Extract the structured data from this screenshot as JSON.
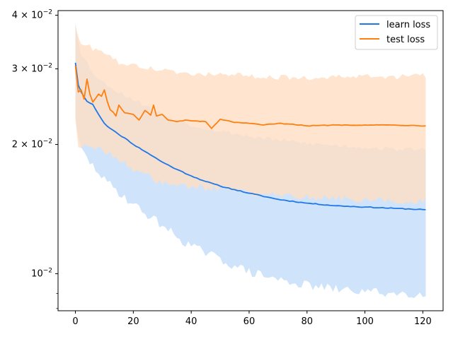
{
  "chart_data": {
    "type": "line",
    "title": "",
    "xlabel": "",
    "ylabel": "",
    "yscale": "log",
    "xlim": [
      -6,
      127
    ],
    "ylim": [
      0.0082,
      0.041
    ],
    "grid": false,
    "legend_position": "top-right",
    "x_ticks": [
      0,
      20,
      40,
      60,
      80,
      100,
      120
    ],
    "x_tick_labels": [
      "0",
      "20",
      "40",
      "60",
      "80",
      "100",
      "120"
    ],
    "y_ticks": [
      {
        "value": 0.01,
        "mantissa": "10",
        "exponent": "−2"
      },
      {
        "value": 0.02,
        "mantissa": "2 × 10",
        "exponent": "−2"
      },
      {
        "value": 0.03,
        "mantissa": "3 × 10",
        "exponent": "−2"
      },
      {
        "value": 0.04,
        "mantissa": "4 × 10",
        "exponent": "−2"
      }
    ],
    "series": [
      {
        "name": "learn loss",
        "color": "#1f77e8",
        "band_color": "#cfe4fb",
        "keypoints": [
          [
            0,
            0.031
          ],
          [
            1,
            0.0275
          ],
          [
            2,
            0.0265
          ],
          [
            3,
            0.0258
          ],
          [
            4,
            0.0252
          ],
          [
            6,
            0.0248
          ],
          [
            8,
            0.0235
          ],
          [
            10,
            0.0224
          ],
          [
            12,
            0.0218
          ],
          [
            15,
            0.0211
          ],
          [
            18,
            0.0205
          ],
          [
            20,
            0.02
          ],
          [
            25,
            0.0191
          ],
          [
            30,
            0.0182
          ],
          [
            35,
            0.0175
          ],
          [
            40,
            0.0169
          ],
          [
            45,
            0.0164
          ],
          [
            50,
            0.016
          ],
          [
            55,
            0.0157
          ],
          [
            60,
            0.0154
          ],
          [
            70,
            0.0149
          ],
          [
            80,
            0.0146
          ],
          [
            90,
            0.0144
          ],
          [
            100,
            0.0143
          ],
          [
            110,
            0.0142
          ],
          [
            121,
            0.0141
          ]
        ],
        "noise": 0.0045,
        "lower_keypoints": [
          [
            0,
            0.0235
          ],
          [
            1,
            0.0205
          ],
          [
            2,
            0.0195
          ],
          [
            4,
            0.0185
          ],
          [
            6,
            0.0178
          ],
          [
            8,
            0.0173
          ],
          [
            10,
            0.0165
          ],
          [
            15,
            0.0155
          ],
          [
            20,
            0.0145
          ],
          [
            25,
            0.0137
          ],
          [
            30,
            0.013
          ],
          [
            35,
            0.0122
          ],
          [
            40,
            0.0116
          ],
          [
            50,
            0.0108
          ],
          [
            60,
            0.0101
          ],
          [
            70,
            0.0097
          ],
          [
            80,
            0.0094
          ],
          [
            90,
            0.0092
          ],
          [
            100,
            0.0091
          ],
          [
            110,
            0.009
          ],
          [
            121,
            0.009
          ]
        ],
        "lower_noise": 0.025,
        "upper_keypoints": [
          [
            0,
            0.0385
          ],
          [
            1,
            0.035
          ],
          [
            2,
            0.0325
          ],
          [
            4,
            0.031
          ],
          [
            6,
            0.0295
          ],
          [
            8,
            0.0284
          ],
          [
            10,
            0.0278
          ],
          [
            15,
            0.0265
          ],
          [
            20,
            0.0255
          ],
          [
            25,
            0.0245
          ],
          [
            30,
            0.0235
          ],
          [
            40,
            0.0222
          ],
          [
            50,
            0.0215
          ],
          [
            60,
            0.0209
          ],
          [
            70,
            0.0205
          ],
          [
            80,
            0.0201
          ],
          [
            90,
            0.0199
          ],
          [
            100,
            0.0197
          ],
          [
            110,
            0.0195
          ],
          [
            121,
            0.0195
          ]
        ],
        "upper_noise": 0.012
      },
      {
        "name": "test loss",
        "color": "#ff7f0e",
        "band_color": "#ffdec2",
        "keypoints": [
          [
            0,
            0.0305
          ],
          [
            1,
            0.0265
          ],
          [
            2,
            0.0268
          ],
          [
            3,
            0.0255
          ],
          [
            4,
            0.0284
          ],
          [
            5,
            0.0262
          ],
          [
            6,
            0.0251
          ],
          [
            8,
            0.0262
          ],
          [
            9,
            0.0259
          ],
          [
            10,
            0.0268
          ],
          [
            11,
            0.0252
          ],
          [
            12,
            0.0241
          ],
          [
            13,
            0.0238
          ],
          [
            14,
            0.0233
          ],
          [
            15,
            0.0247
          ],
          [
            17,
            0.0237
          ],
          [
            20,
            0.0235
          ],
          [
            22,
            0.0228
          ],
          [
            24,
            0.024
          ],
          [
            26,
            0.0234
          ],
          [
            27,
            0.0247
          ],
          [
            28,
            0.0233
          ],
          [
            30,
            0.0235
          ],
          [
            32,
            0.0228
          ],
          [
            35,
            0.0226
          ],
          [
            38,
            0.0228
          ],
          [
            40,
            0.0227
          ],
          [
            45,
            0.0226
          ],
          [
            47,
            0.0218
          ],
          [
            50,
            0.0229
          ],
          [
            55,
            0.0225
          ],
          [
            60,
            0.0224
          ],
          [
            65,
            0.0222
          ],
          [
            70,
            0.0224
          ],
          [
            75,
            0.0223
          ],
          [
            80,
            0.0221
          ],
          [
            90,
            0.0222
          ],
          [
            100,
            0.0222
          ],
          [
            110,
            0.0222
          ],
          [
            121,
            0.0221
          ]
        ],
        "noise": 0.0035,
        "lower_keypoints": [
          [
            0,
            0.023
          ],
          [
            1,
            0.0195
          ],
          [
            2,
            0.0197
          ],
          [
            4,
            0.0202
          ],
          [
            8,
            0.0195
          ],
          [
            10,
            0.0192
          ],
          [
            15,
            0.0186
          ],
          [
            20,
            0.0175
          ],
          [
            25,
            0.0168
          ],
          [
            30,
            0.0162
          ],
          [
            40,
            0.016
          ],
          [
            50,
            0.0157
          ],
          [
            60,
            0.0154
          ],
          [
            70,
            0.0152
          ],
          [
            80,
            0.0151
          ],
          [
            90,
            0.015
          ],
          [
            100,
            0.0149
          ],
          [
            110,
            0.0148
          ],
          [
            121,
            0.0148
          ]
        ],
        "lower_noise": 0.02,
        "upper_keypoints": [
          [
            0,
            0.038
          ],
          [
            1,
            0.0355
          ],
          [
            2,
            0.034
          ],
          [
            4,
            0.0345
          ],
          [
            6,
            0.033
          ],
          [
            8,
            0.0335
          ],
          [
            10,
            0.0325
          ],
          [
            15,
            0.031
          ],
          [
            20,
            0.0305
          ],
          [
            30,
            0.0298
          ],
          [
            40,
            0.029
          ],
          [
            50,
            0.0293
          ],
          [
            60,
            0.0288
          ],
          [
            70,
            0.0287
          ],
          [
            80,
            0.0286
          ],
          [
            90,
            0.0287
          ],
          [
            100,
            0.0288
          ],
          [
            110,
            0.0287
          ],
          [
            121,
            0.029
          ]
        ],
        "upper_noise": 0.014
      }
    ],
    "x_count": 122
  }
}
